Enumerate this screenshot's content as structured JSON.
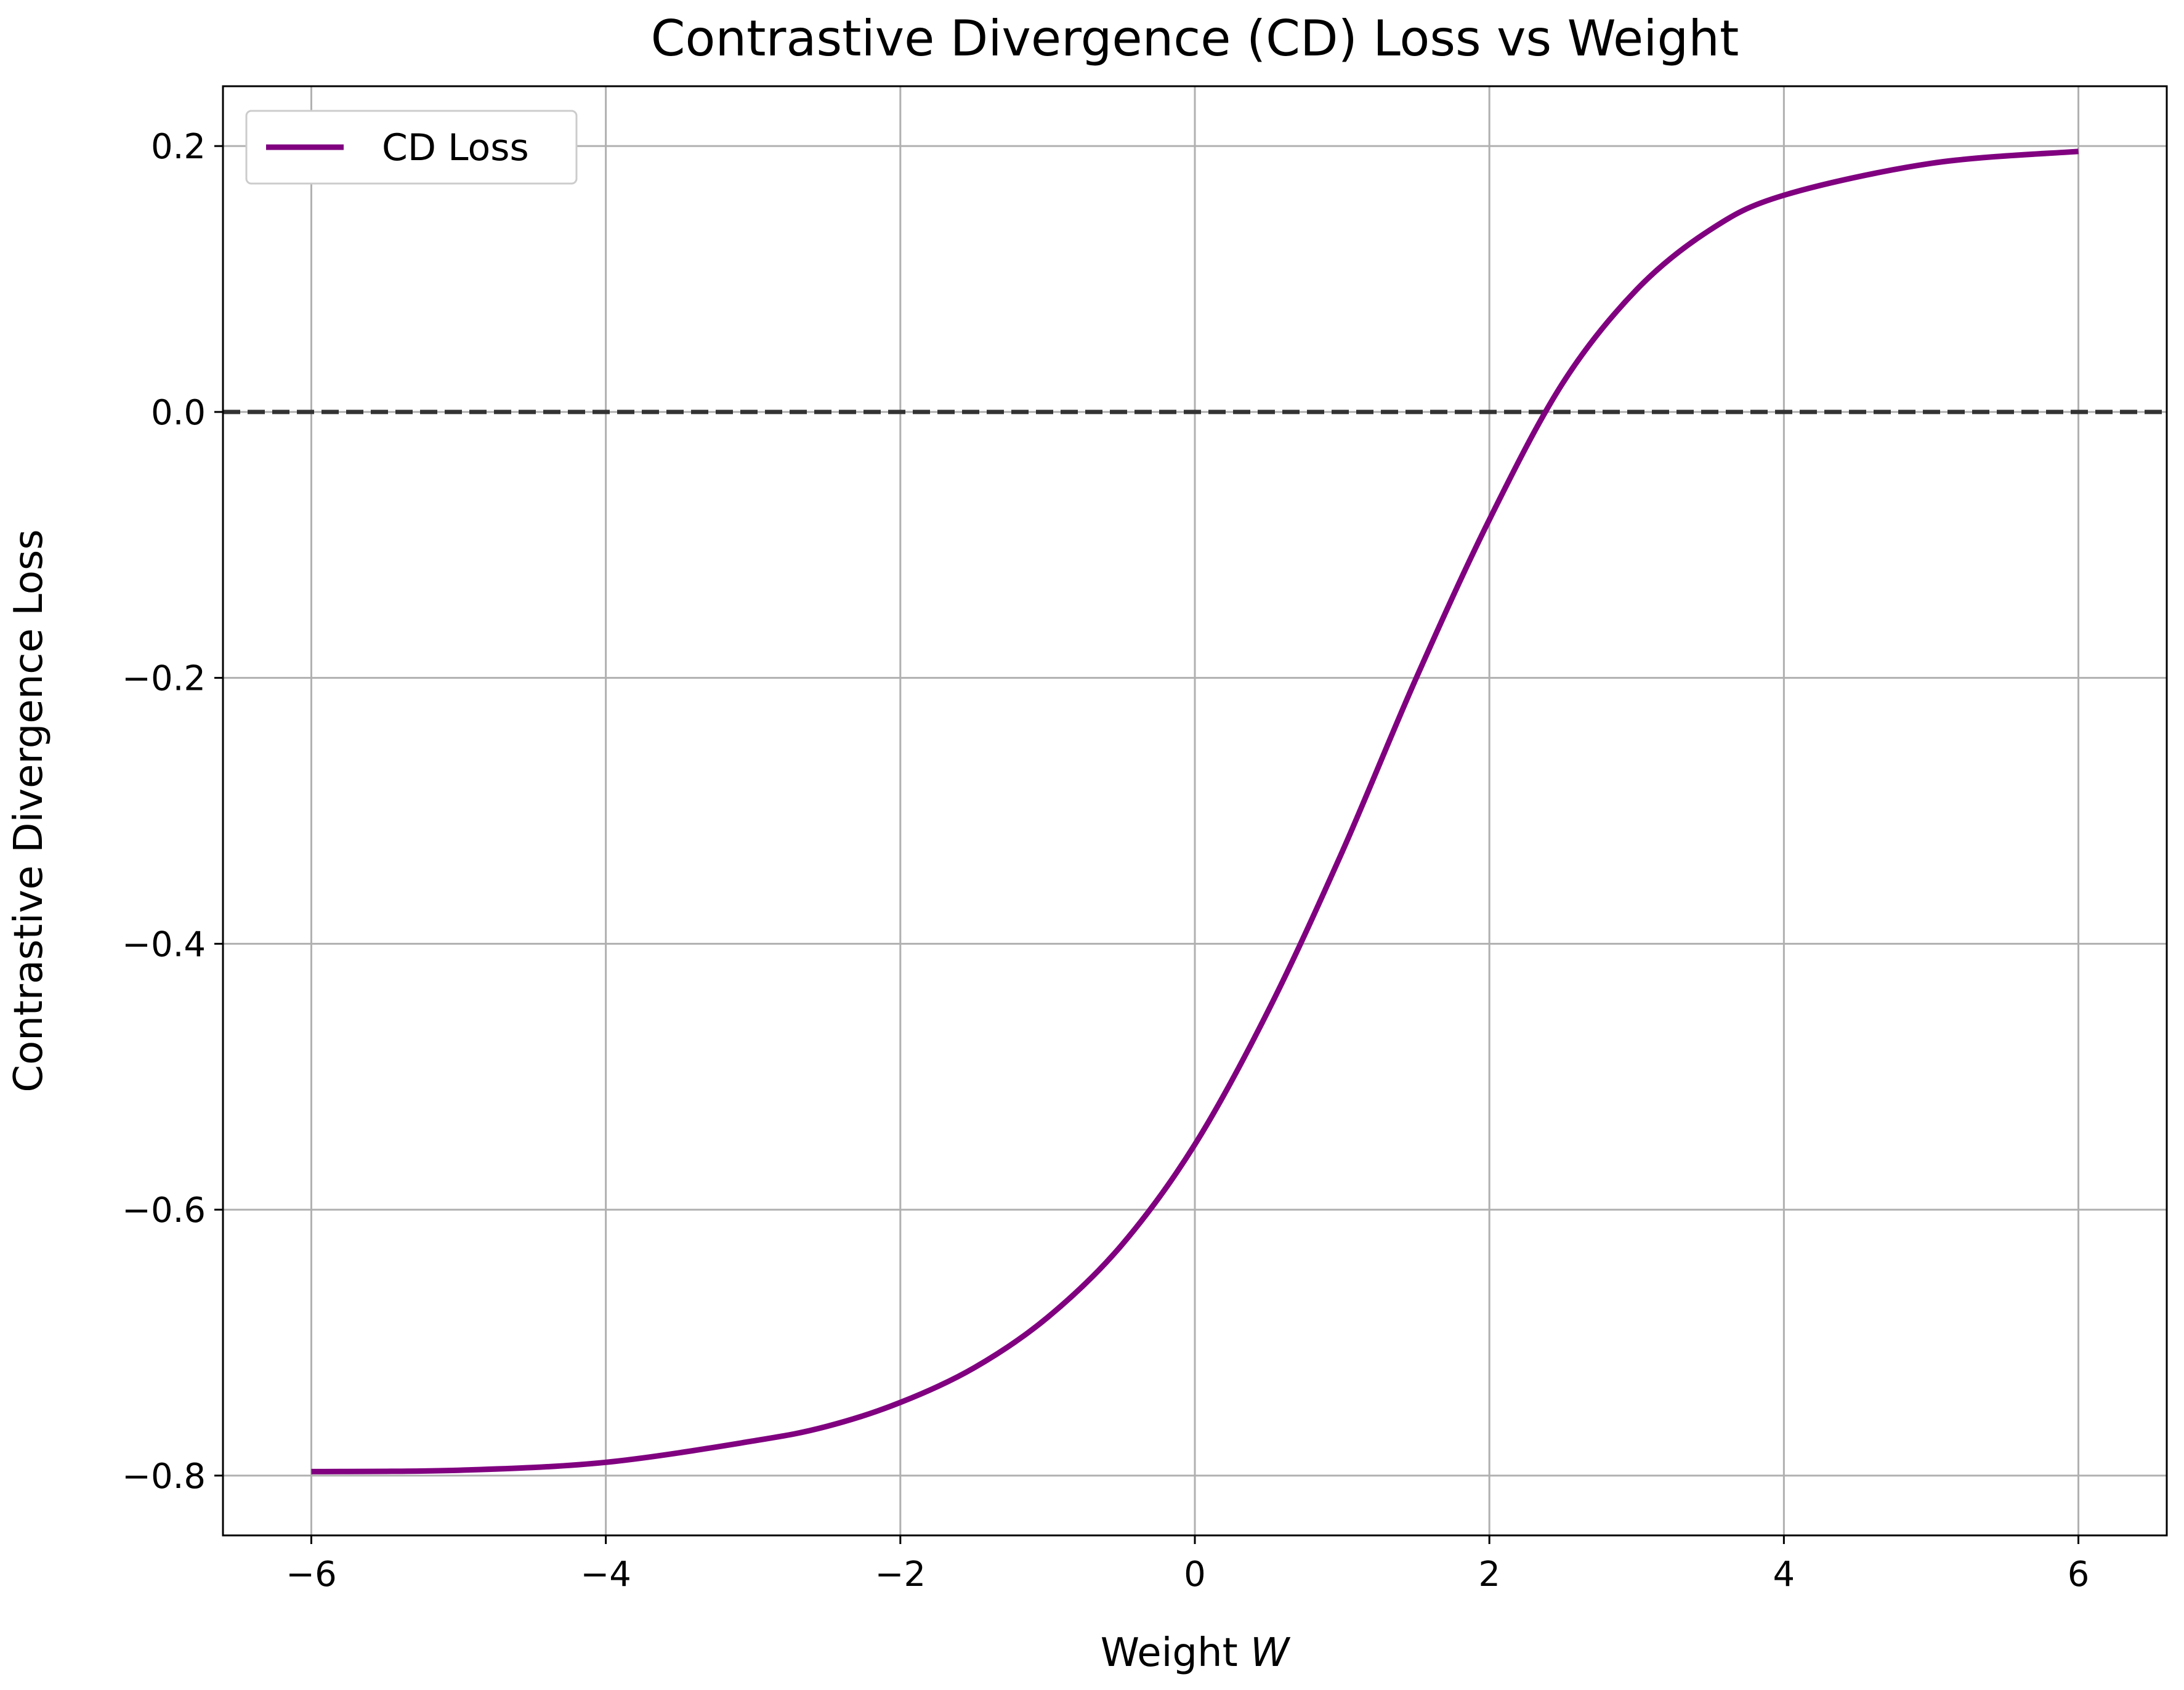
{
  "chart_data": {
    "type": "line",
    "title": "Contrastive Divergence (CD) Loss vs Weight",
    "xlabel": "Weight W",
    "ylabel": "Contrastive Divergence Loss",
    "xlim": [
      -6.6,
      6.6
    ],
    "ylim": [
      -0.845,
      0.245
    ],
    "x_ticks": [
      -6,
      -4,
      -2,
      0,
      2,
      4,
      6
    ],
    "x_tick_labels": [
      "−6",
      "−4",
      "−2",
      "0",
      "2",
      "4",
      "6"
    ],
    "y_ticks": [
      -0.8,
      -0.6,
      -0.4,
      -0.2,
      0.0,
      0.2
    ],
    "y_tick_labels": [
      "−0.8",
      "−0.6",
      "−0.4",
      "−0.2",
      "0.0",
      "0.2"
    ],
    "grid": true,
    "legend_position": "top-left",
    "reference_line": {
      "y": 0.0,
      "style": "dashed",
      "color": "#333333"
    },
    "series": [
      {
        "name": "CD Loss",
        "color": "#800080",
        "x": [
          -6,
          -5,
          -4,
          -3,
          -2.5,
          -2,
          -1.5,
          -1,
          -0.5,
          0,
          0.5,
          1,
          1.5,
          2,
          2.5,
          3,
          3.5,
          4,
          5,
          6
        ],
        "y": [
          -0.797,
          -0.796,
          -0.79,
          -0.774,
          -0.763,
          -0.745,
          -0.719,
          -0.681,
          -0.627,
          -0.551,
          -0.45,
          -0.331,
          -0.201,
          -0.081,
          0.022,
          0.092,
          0.137,
          0.163,
          0.187,
          0.196
        ]
      }
    ]
  }
}
